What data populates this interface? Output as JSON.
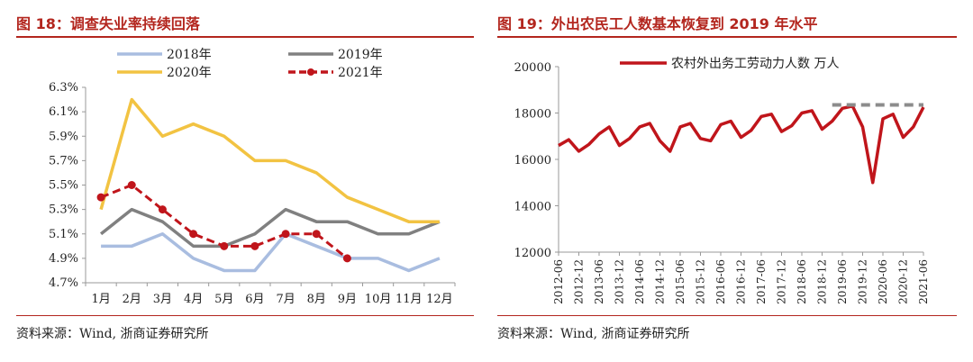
{
  "left": {
    "title": "图 18：调查失业率持续回落",
    "source": "资料来源：Wind, 浙商证券研究所",
    "colors": {
      "s2018": "#a9bde0",
      "s2019": "#808080",
      "s2020": "#f2c342",
      "s2021": "#c0151b"
    }
  },
  "right": {
    "title": "图 19：外出农民工人数基本恢复到 2019 年水平",
    "source": "资料来源：Wind, 浙商证券研究所",
    "colors": {
      "main": "#c0151b",
      "ref": "#8c8c8c"
    }
  },
  "chart_data": [
    {
      "type": "line",
      "title": "调查失业率持续回落",
      "categories": [
        "1月",
        "2月",
        "3月",
        "4月",
        "5月",
        "6月",
        "7月",
        "8月",
        "9月",
        "10月",
        "11月",
        "12月"
      ],
      "y_ticks": [
        "4.7%",
        "4.9%",
        "5.1%",
        "5.3%",
        "5.5%",
        "5.7%",
        "5.9%",
        "6.1%",
        "6.3%"
      ],
      "ylim": [
        4.7,
        6.3
      ],
      "legend_position": "top",
      "series": [
        {
          "name": "2018年",
          "values": [
            5.0,
            5.0,
            5.1,
            4.9,
            4.8,
            4.8,
            5.1,
            5.0,
            4.9,
            4.9,
            4.8,
            4.9
          ]
        },
        {
          "name": "2019年",
          "values": [
            5.1,
            5.3,
            5.2,
            5.0,
            5.0,
            5.1,
            5.3,
            5.2,
            5.2,
            5.1,
            5.1,
            5.2
          ]
        },
        {
          "name": "2020年",
          "values": [
            5.3,
            6.2,
            5.9,
            6.0,
            5.9,
            5.7,
            5.7,
            5.6,
            5.4,
            5.3,
            5.2,
            5.2
          ]
        },
        {
          "name": "2021年",
          "values": [
            5.4,
            5.5,
            5.3,
            5.1,
            5.0,
            5.0,
            5.1,
            5.1,
            4.9,
            null,
            null,
            null
          ]
        }
      ]
    },
    {
      "type": "line",
      "title": "外出农民工人数基本恢复到 2019 年水平",
      "x_tick_labels": [
        "2012-06",
        "2012-12",
        "2013-06",
        "2013-12",
        "2014-06",
        "2014-12",
        "2015-06",
        "2015-12",
        "2016-06",
        "2016-12",
        "2017-06",
        "2017-12",
        "2018-06",
        "2018-12",
        "2019-06",
        "2019-12",
        "2020-06",
        "2020-12",
        "2021-06"
      ],
      "y_ticks": [
        "12000",
        "14000",
        "16000",
        "18000",
        "20000"
      ],
      "ylim": [
        12000,
        20000
      ],
      "legend_position": "top",
      "series": [
        {
          "name": "农村外出务工劳动力人数 万人",
          "x": [
            "2012-06",
            "2012-09",
            "2012-12",
            "2013-03",
            "2013-06",
            "2013-09",
            "2013-12",
            "2014-03",
            "2014-06",
            "2014-09",
            "2014-12",
            "2015-03",
            "2015-06",
            "2015-09",
            "2015-12",
            "2016-03",
            "2016-06",
            "2016-09",
            "2016-12",
            "2017-03",
            "2017-06",
            "2017-09",
            "2017-12",
            "2018-03",
            "2018-06",
            "2018-09",
            "2018-12",
            "2019-03",
            "2019-06",
            "2019-09",
            "2019-12",
            "2020-03",
            "2020-06",
            "2020-09",
            "2020-12",
            "2021-03",
            "2021-06"
          ],
          "values": [
            16600,
            16850,
            16350,
            16650,
            17100,
            17400,
            16600,
            16900,
            17400,
            17550,
            16800,
            16350,
            17400,
            17550,
            16900,
            16800,
            17500,
            17650,
            16950,
            17250,
            17850,
            17950,
            17200,
            17450,
            18000,
            18100,
            17300,
            17650,
            18200,
            18300,
            17400,
            15000,
            17750,
            17950,
            16950,
            17400,
            18250
          ]
        },
        {
          "name": "",
          "x": [
            "2019-03",
            "2021-06"
          ],
          "values": [
            18350,
            18350
          ],
          "style": "dashed"
        }
      ]
    }
  ]
}
